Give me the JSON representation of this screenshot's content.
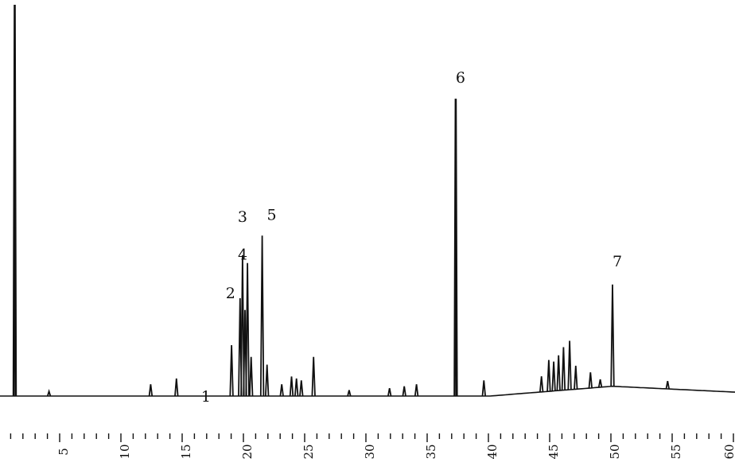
{
  "chart_data": {
    "type": "line",
    "title": "",
    "xlabel": "",
    "ylabel": "",
    "xlim": [
      0,
      60
    ],
    "ylim": [
      0,
      1
    ],
    "grid": false,
    "x_ticks": [
      {
        "value": 5,
        "label": "5"
      },
      {
        "value": 10,
        "label": "10"
      },
      {
        "value": 15,
        "label": "15"
      },
      {
        "value": 20,
        "label": "20"
      },
      {
        "value": 25,
        "label": "25"
      },
      {
        "value": 30,
        "label": "30"
      },
      {
        "value": 35,
        "label": "35"
      },
      {
        "value": 40,
        "label": "40"
      },
      {
        "value": 45,
        "label": "45"
      },
      {
        "value": 50,
        "label": "50"
      },
      {
        "value": 55,
        "label": "55"
      },
      {
        "value": 60,
        "label": "60"
      }
    ],
    "labeled_peaks": [
      {
        "label": "1",
        "x": 17.2,
        "y": 0.01
      },
      {
        "label": "2",
        "x": 19.6,
        "y": 0.25
      },
      {
        "label": "3",
        "x": 19.8,
        "y": 0.36
      },
      {
        "label": "4",
        "x": 20.2,
        "y": 0.34
      },
      {
        "label": "5",
        "x": 21.4,
        "y": 0.41
      },
      {
        "label": "6",
        "x": 37.2,
        "y": 0.76
      },
      {
        "label": "7",
        "x": 50.0,
        "y": 0.26
      }
    ],
    "series": [
      {
        "peaks": [
          {
            "x": 1.2,
            "y": 1.0
          },
          {
            "x": 4.0,
            "y": 0.012
          },
          {
            "x": 12.3,
            "y": 0.03
          },
          {
            "x": 14.4,
            "y": 0.045
          },
          {
            "x": 18.9,
            "y": 0.13
          },
          {
            "x": 19.6,
            "y": 0.25
          },
          {
            "x": 19.8,
            "y": 0.36
          },
          {
            "x": 20.0,
            "y": 0.22
          },
          {
            "x": 20.2,
            "y": 0.34
          },
          {
            "x": 20.5,
            "y": 0.1
          },
          {
            "x": 21.4,
            "y": 0.41
          },
          {
            "x": 21.8,
            "y": 0.08
          },
          {
            "x": 23.0,
            "y": 0.03
          },
          {
            "x": 23.8,
            "y": 0.05
          },
          {
            "x": 24.2,
            "y": 0.045
          },
          {
            "x": 24.6,
            "y": 0.04
          },
          {
            "x": 25.6,
            "y": 0.1
          },
          {
            "x": 28.5,
            "y": 0.015
          },
          {
            "x": 31.8,
            "y": 0.02
          },
          {
            "x": 33.0,
            "y": 0.025
          },
          {
            "x": 34.0,
            "y": 0.03
          },
          {
            "x": 37.2,
            "y": 0.76
          },
          {
            "x": 39.5,
            "y": 0.04
          },
          {
            "x": 44.2,
            "y": 0.04
          },
          {
            "x": 44.8,
            "y": 0.08
          },
          {
            "x": 45.2,
            "y": 0.075
          },
          {
            "x": 45.6,
            "y": 0.09
          },
          {
            "x": 46.0,
            "y": 0.11
          },
          {
            "x": 46.5,
            "y": 0.125
          },
          {
            "x": 47.0,
            "y": 0.06
          },
          {
            "x": 48.2,
            "y": 0.04
          },
          {
            "x": 49.0,
            "y": 0.02
          },
          {
            "x": 50.0,
            "y": 0.26
          },
          {
            "x": 54.5,
            "y": 0.02
          }
        ]
      }
    ],
    "colors": {
      "trace": "#111111",
      "background": "#ffffff"
    }
  }
}
